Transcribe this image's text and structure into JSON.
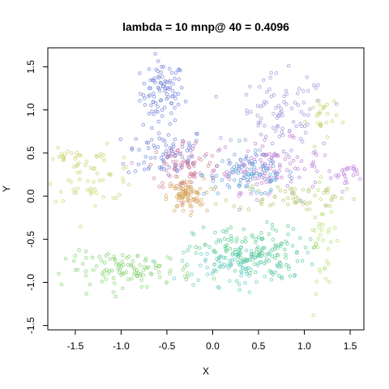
{
  "chart_data": {
    "type": "scatter",
    "title": "lambda = 10 mnp@ 40 = 0.4096",
    "xlabel": "X",
    "ylabel": "Y",
    "xlim": [
      -1.8,
      1.65
    ],
    "ylim": [
      -1.55,
      1.72
    ],
    "xticks": [
      -1.5,
      -1.0,
      -0.5,
      0.0,
      0.5,
      1.0,
      1.5
    ],
    "xtick_labels": [
      "-1.5",
      "-1.0",
      "-0.5",
      "0.0",
      "0.5",
      "1.0",
      "1.5"
    ],
    "yticks": [
      -1.5,
      -1.0,
      -0.5,
      0.0,
      0.5,
      1.0,
      1.5
    ],
    "ytick_labels": [
      "-1.5",
      "-1.0",
      "-0.5",
      "0.0",
      "0.5",
      "1.0",
      "1.5"
    ],
    "grid": false,
    "legend": "none",
    "marker": "open-circle",
    "clusters": [
      {
        "color": "#6f7fd6",
        "center": [
          -0.55,
          1.2
        ],
        "spread": [
          0.12,
          0.18
        ],
        "count": 90
      },
      {
        "color": "#6f7fd6",
        "center": [
          -0.5,
          0.5
        ],
        "spread": [
          0.22,
          0.15
        ],
        "count": 80
      },
      {
        "color": "#b879d6",
        "center": [
          0.6,
          0.35
        ],
        "spread": [
          0.3,
          0.15
        ],
        "count": 120
      },
      {
        "color": "#5aa0d6",
        "center": [
          0.4,
          0.25
        ],
        "spread": [
          0.25,
          0.12
        ],
        "count": 90
      },
      {
        "color": "#9a8fd6",
        "center": [
          0.75,
          0.9
        ],
        "spread": [
          0.25,
          0.25
        ],
        "count": 90
      },
      {
        "color": "#c7d06a",
        "center": [
          -1.3,
          0.25
        ],
        "spread": [
          0.25,
          0.15
        ],
        "count": 60
      },
      {
        "color": "#d4a25a",
        "center": [
          -0.3,
          0.0
        ],
        "spread": [
          0.1,
          0.1
        ],
        "count": 90
      },
      {
        "color": "#d07b9a",
        "center": [
          -0.3,
          0.35
        ],
        "spread": [
          0.2,
          0.15
        ],
        "count": 70
      },
      {
        "color": "#b6c46a",
        "center": [
          0.9,
          0.0
        ],
        "spread": [
          0.35,
          0.08
        ],
        "count": 60
      },
      {
        "color": "#52c98a",
        "center": [
          0.4,
          -0.65
        ],
        "spread": [
          0.3,
          0.15
        ],
        "count": 150
      },
      {
        "color": "#5cc8c0",
        "center": [
          0.25,
          -0.8
        ],
        "spread": [
          0.3,
          0.12
        ],
        "count": 90
      },
      {
        "color": "#7ed06a",
        "center": [
          -0.9,
          -0.85
        ],
        "spread": [
          0.35,
          0.1
        ],
        "count": 110
      },
      {
        "color": "#aee06a",
        "center": [
          1.2,
          -0.5
        ],
        "spread": [
          0.08,
          0.3
        ],
        "count": 40
      },
      {
        "color": "#c7d06a",
        "center": [
          1.2,
          0.9
        ],
        "spread": [
          0.08,
          0.15
        ],
        "count": 25
      },
      {
        "color": "#b879d6",
        "center": [
          1.45,
          0.27
        ],
        "spread": [
          0.08,
          0.05
        ],
        "count": 20
      },
      {
        "color": "#c7d06a",
        "center": [
          -1.6,
          0.45
        ],
        "spread": [
          0.08,
          0.05
        ],
        "count": 15
      }
    ]
  }
}
